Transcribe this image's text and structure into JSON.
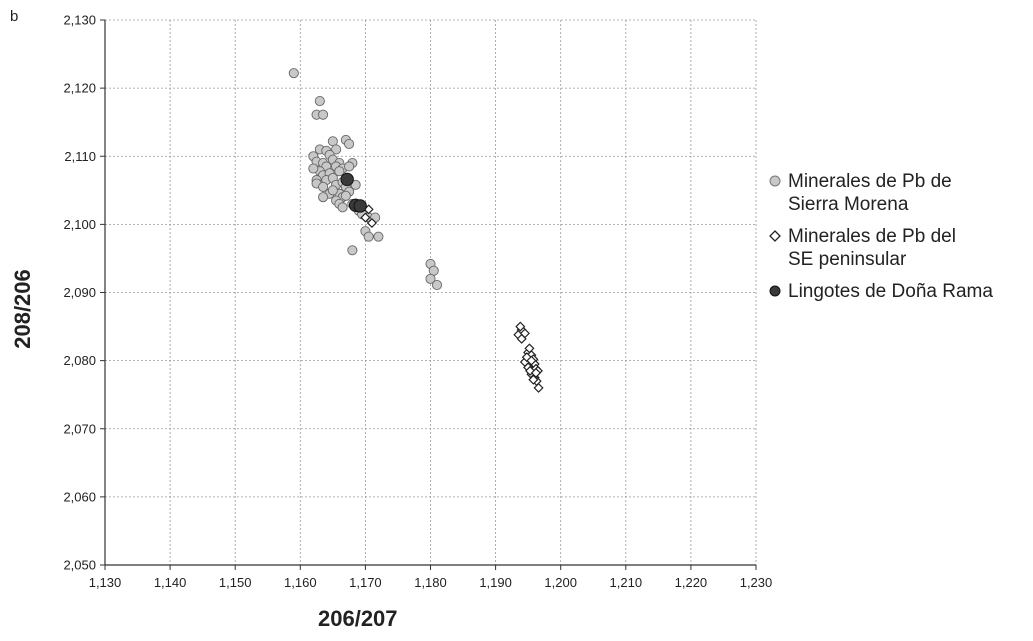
{
  "panel_label": "b",
  "chart_data": {
    "type": "scatter",
    "xlabel": "206/207",
    "ylabel": "208/206",
    "xlim": [
      1.13,
      1.23
    ],
    "ylim": [
      2.05,
      2.13
    ],
    "x_ticks": [
      "1,130",
      "1,140",
      "1,150",
      "1,160",
      "1,170",
      "1,180",
      "1,190",
      "1,200",
      "1,210",
      "1,220",
      "1,230"
    ],
    "y_ticks": [
      "2,050",
      "2,060",
      "2,070",
      "2,080",
      "2,090",
      "2,100",
      "2,110",
      "2,120",
      "2,130"
    ],
    "grid": true,
    "legend_position": "right",
    "series": [
      {
        "name": "Minerales de Pb de Sierra Morena",
        "legend_lines": [
          "Minerales de Pb de",
          "Sierra Morena"
        ],
        "marker": "circle",
        "color": "#c8c8c8",
        "x": [
          1.159,
          1.163,
          1.1625,
          1.1635,
          1.167,
          1.1675,
          1.165,
          1.1655,
          1.162,
          1.163,
          1.1625,
          1.164,
          1.1645,
          1.1635,
          1.165,
          1.166,
          1.1655,
          1.164,
          1.1665,
          1.166,
          1.168,
          1.1675,
          1.163,
          1.1635,
          1.1645,
          1.1625,
          1.162,
          1.164,
          1.165,
          1.1655,
          1.1665,
          1.167,
          1.1675,
          1.1685,
          1.166,
          1.1665,
          1.1645,
          1.1635,
          1.1655,
          1.166,
          1.1665,
          1.168,
          1.169,
          1.1695,
          1.1705,
          1.171,
          1.1715,
          1.172,
          1.17,
          1.1705,
          1.168,
          1.18,
          1.1805,
          1.18,
          1.181,
          1.1625,
          1.1635,
          1.165,
          1.167
        ],
        "y": [
          2.1222,
          2.1181,
          2.1161,
          2.1161,
          2.1124,
          2.1118,
          2.1122,
          2.111,
          2.11,
          2.111,
          2.1092,
          2.1108,
          2.1102,
          2.109,
          2.1095,
          2.109,
          2.1085,
          2.1085,
          2.1082,
          2.1078,
          2.109,
          2.1085,
          2.1078,
          2.1072,
          2.1075,
          2.1065,
          2.1082,
          2.1065,
          2.1068,
          2.1058,
          2.1062,
          2.1055,
          2.1048,
          2.1058,
          2.1045,
          2.104,
          2.1045,
          2.104,
          2.1035,
          2.103,
          2.1025,
          2.103,
          2.102,
          2.1015,
          2.101,
          2.1005,
          2.101,
          2.0982,
          2.099,
          2.0982,
          2.0962,
          2.0942,
          2.0932,
          2.092,
          2.0911,
          2.106,
          2.1055,
          2.105,
          2.1042
        ]
      },
      {
        "name": "Minerales de Pb del SE peninsular",
        "legend_lines": [
          "Minerales de Pb del",
          "SE peninsular"
        ],
        "marker": "diamond",
        "color": "#ffffff",
        "x": [
          1.1695,
          1.1705,
          1.17,
          1.171,
          1.1935,
          1.194,
          1.1945,
          1.1938,
          1.195,
          1.1952,
          1.1955,
          1.1958,
          1.196,
          1.1962,
          1.1965,
          1.1945,
          1.195,
          1.1955,
          1.196,
          1.1963,
          1.1958,
          1.1948,
          1.1953,
          1.1962,
          1.1966,
          1.194,
          1.1955
        ],
        "y": [
          2.1025,
          2.1022,
          2.101,
          2.1002,
          2.0838,
          2.0845,
          2.084,
          2.085,
          2.0812,
          2.0818,
          2.0808,
          2.0802,
          2.0795,
          2.0788,
          2.0785,
          2.0798,
          2.079,
          2.078,
          2.0775,
          2.077,
          2.0772,
          2.0805,
          2.0785,
          2.0782,
          2.076,
          2.0832,
          2.08
        ]
      },
      {
        "name": "Lingotes de Doña Rama",
        "legend_lines": [
          "Lingotes de Doña Rama"
        ],
        "marker": "circle",
        "color": "#3a3a3a",
        "x": [
          1.1672,
          1.1685,
          1.1692
        ],
        "y": [
          2.1066,
          2.1028,
          2.1027
        ]
      }
    ]
  }
}
